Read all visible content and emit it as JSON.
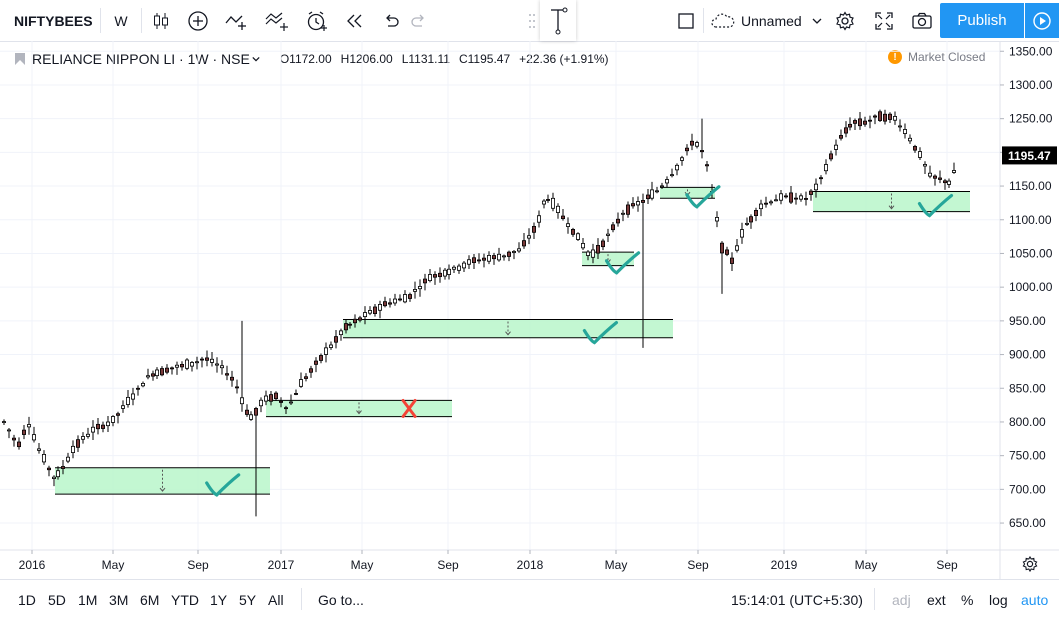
{
  "toolbar": {
    "symbol": "NIFTYBEES",
    "interval": "W",
    "layout_name": "Unnamed",
    "publish_label": "Publish"
  },
  "legend": {
    "title": "RELIANCE NIPPON LI · 1W · NSE",
    "open": "O1172.00",
    "high": "H1206.00",
    "low": "L1131.11",
    "close": "C1195.47",
    "change": "+22.36 (+1.91%)"
  },
  "market_status": "Market Closed",
  "chart_data": {
    "type": "candlestick",
    "current_price": "1195.47",
    "y_ticks": [
      "1350.00",
      "1300.00",
      "1250.00",
      "1200.00",
      "1150.00",
      "1100.00",
      "1050.00",
      "1000.00",
      "950.00",
      "900.00",
      "850.00",
      "800.00",
      "750.00",
      "700.00",
      "650.00"
    ],
    "x_ticks": [
      "2016",
      "May",
      "Sep",
      "2017",
      "May",
      "Sep",
      "2018",
      "May",
      "Sep",
      "2019",
      "May",
      "Sep"
    ],
    "ylim": [
      620,
      1365
    ],
    "colors": {
      "up": "#26a69a",
      "down": "#ef5350",
      "candle": "#000000",
      "zone_fill": "#b9f6ca",
      "zone_line": "#000000",
      "check": "#26a69a",
      "cross": "#f44336"
    },
    "zones": [
      {
        "low": 693,
        "high": 732,
        "result": "check"
      },
      {
        "low": 808,
        "high": 832,
        "result": "cross"
      },
      {
        "low": 925,
        "high": 952,
        "result": "check"
      },
      {
        "low": 1032,
        "high": 1052,
        "result": "check"
      },
      {
        "low": 1132,
        "high": 1148,
        "result": "check"
      },
      {
        "low": 1112,
        "high": 1142,
        "result": "check"
      }
    ]
  },
  "bottombar": {
    "ranges": [
      "1D",
      "5D",
      "1M",
      "3M",
      "6M",
      "YTD",
      "1Y",
      "5Y",
      "All"
    ],
    "goto": "Go to...",
    "clock": "15:14:01 (UTC+5:30)",
    "adj": "adj",
    "ext": "ext",
    "percent": "%",
    "log": "log",
    "auto": "auto"
  }
}
